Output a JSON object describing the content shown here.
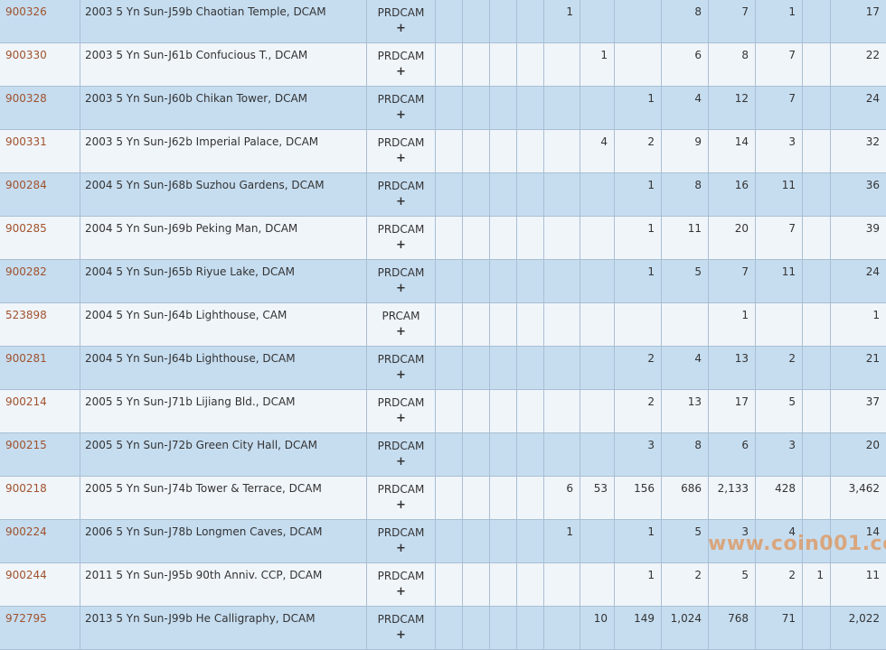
{
  "rows": [
    {
      "id": "900326",
      "desc": "2003 5 Yn Sun-J59b Chaotian Temple, DCAM",
      "grade": "PRDCAM",
      "plus": "+",
      "counts": [
        "",
        "",
        "",
        "",
        "1",
        "",
        "",
        "8",
        "7",
        "1",
        "",
        "17"
      ]
    },
    {
      "id": "900330",
      "desc": "2003 5 Yn Sun-J61b Confucious T., DCAM",
      "grade": "PRDCAM",
      "plus": "+",
      "counts": [
        "",
        "",
        "",
        "",
        "",
        "1",
        "",
        "6",
        "8",
        "7",
        "",
        "22"
      ]
    },
    {
      "id": "900328",
      "desc": "2003 5 Yn Sun-J60b Chikan Tower, DCAM",
      "grade": "PRDCAM",
      "plus": "+",
      "counts": [
        "",
        "",
        "",
        "",
        "",
        "",
        "1",
        "4",
        "12",
        "7",
        "",
        "24"
      ]
    },
    {
      "id": "900331",
      "desc": "2003 5 Yn Sun-J62b Imperial Palace, DCAM",
      "grade": "PRDCAM",
      "plus": "+",
      "counts": [
        "",
        "",
        "",
        "",
        "",
        "4",
        "2",
        "9",
        "14",
        "3",
        "",
        "32"
      ]
    },
    {
      "id": "900284",
      "desc": "2004 5 Yn Sun-J68b Suzhou Gardens, DCAM",
      "grade": "PRDCAM",
      "plus": "+",
      "counts": [
        "",
        "",
        "",
        "",
        "",
        "",
        "1",
        "8",
        "16",
        "11",
        "",
        "36"
      ]
    },
    {
      "id": "900285",
      "desc": "2004 5 Yn Sun-J69b Peking Man, DCAM",
      "grade": "PRDCAM",
      "plus": "+",
      "counts": [
        "",
        "",
        "",
        "",
        "",
        "",
        "1",
        "11",
        "20",
        "7",
        "",
        "39"
      ]
    },
    {
      "id": "900282",
      "desc": "2004 5 Yn Sun-J65b Riyue Lake, DCAM",
      "grade": "PRDCAM",
      "plus": "+",
      "counts": [
        "",
        "",
        "",
        "",
        "",
        "",
        "1",
        "5",
        "7",
        "11",
        "",
        "24"
      ]
    },
    {
      "id": "523898",
      "desc": "2004 5 Yn Sun-J64b Lighthouse, CAM",
      "grade": "PRCAM",
      "plus": "+",
      "counts": [
        "",
        "",
        "",
        "",
        "",
        "",
        "",
        "",
        "1",
        "",
        "",
        "1"
      ]
    },
    {
      "id": "900281",
      "desc": "2004 5 Yn Sun-J64b Lighthouse, DCAM",
      "grade": "PRDCAM",
      "plus": "+",
      "counts": [
        "",
        "",
        "",
        "",
        "",
        "",
        "2",
        "4",
        "13",
        "2",
        "",
        "21"
      ]
    },
    {
      "id": "900214",
      "desc": "2005 5 Yn Sun-J71b Lijiang Bld., DCAM",
      "grade": "PRDCAM",
      "plus": "+",
      "counts": [
        "",
        "",
        "",
        "",
        "",
        "",
        "2",
        "13",
        "17",
        "5",
        "",
        "37"
      ]
    },
    {
      "id": "900215",
      "desc": "2005 5 Yn Sun-J72b Green City Hall, DCAM",
      "grade": "PRDCAM",
      "plus": "+",
      "counts": [
        "",
        "",
        "",
        "",
        "",
        "",
        "3",
        "8",
        "6",
        "3",
        "",
        "20"
      ]
    },
    {
      "id": "900218",
      "desc": "2005 5 Yn Sun-J74b Tower & Terrace, DCAM",
      "grade": "PRDCAM",
      "plus": "+",
      "counts": [
        "",
        "",
        "",
        "",
        "6",
        "53",
        "156",
        "686",
        "2,133",
        "428",
        "",
        "3,462"
      ]
    },
    {
      "id": "900224",
      "desc": "2006 5 Yn Sun-J78b Longmen Caves, DCAM",
      "grade": "PRDCAM",
      "plus": "+",
      "counts": [
        "",
        "",
        "",
        "",
        "1",
        "",
        "1",
        "5",
        "3",
        "4",
        "",
        "14"
      ]
    },
    {
      "id": "900244",
      "desc": "2011 5 Yn Sun-J95b 90th Anniv. CCP, DCAM",
      "grade": "PRDCAM",
      "plus": "+",
      "counts": [
        "",
        "",
        "",
        "",
        "",
        "",
        "1",
        "2",
        "5",
        "2",
        "1",
        "11"
      ]
    },
    {
      "id": "972795",
      "desc": "2013 5 Yn Sun-J99b He Calligraphy, DCAM",
      "grade": "PRDCAM",
      "plus": "+",
      "counts": [
        "",
        "",
        "",
        "",
        "",
        "10",
        "149",
        "1,024",
        "768",
        "71",
        "",
        "2,022"
      ]
    }
  ],
  "watermark": "www.coin001.com",
  "colors": {
    "row_odd": "#c6ddf0",
    "row_even": "#f0f5fa",
    "link": "#a0522d",
    "grid": "#a9bfd3"
  }
}
